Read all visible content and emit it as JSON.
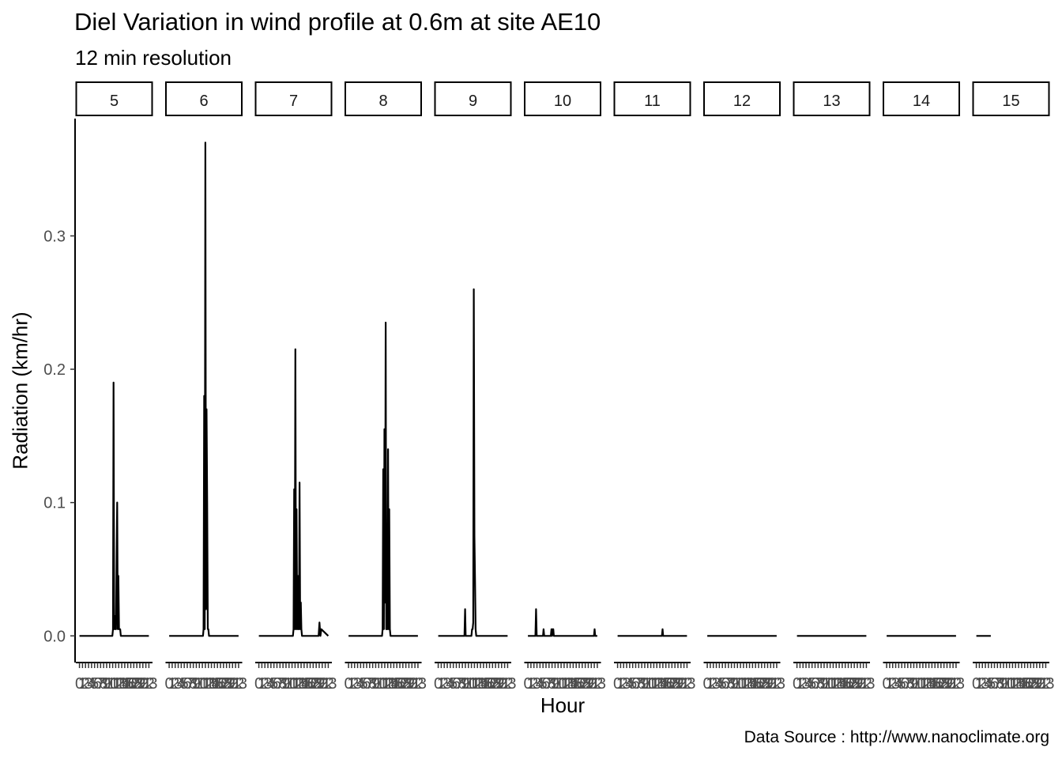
{
  "chart_data": {
    "type": "line",
    "title": "Diel Variation in wind profile at 0.6m at site AE10",
    "subtitle": "12 min resolution",
    "xlabel": "Hour",
    "ylabel": "Radiation (km/hr)",
    "caption": "Data Source : http://www.nanoclimate.org",
    "ylim": [
      -0.02,
      0.388
    ],
    "yticks": [
      0.0,
      0.1,
      0.2,
      0.3
    ],
    "ytick_labels": [
      "0.0",
      "0.1",
      "0.2",
      "0.3"
    ],
    "xlim": [
      -1.2,
      24.2
    ],
    "xtick_labels": [
      "0",
      "1",
      "2",
      "3",
      "4",
      "5",
      "6",
      "7",
      "8",
      "9",
      "10",
      "11",
      "12",
      "13",
      "14",
      "15",
      "16",
      "17",
      "18",
      "19",
      "20",
      "21",
      "22",
      "23"
    ],
    "grid": false,
    "legend": "none",
    "panels": [
      {
        "label": "5",
        "x": [
          0,
          10.9,
          11.1,
          11.3,
          11.5,
          11.7,
          11.9,
          12.1,
          12.3,
          12.5,
          12.7,
          12.9,
          13.1,
          13.3,
          13.5,
          13.7,
          13.9,
          14.1,
          23
        ],
        "values": [
          0,
          0,
          0.005,
          0.19,
          0.005,
          0.015,
          0.005,
          0.005,
          0.06,
          0.1,
          0.005,
          0.045,
          0.005,
          0.005,
          0.005,
          0,
          0,
          0,
          0
        ]
      },
      {
        "label": "6",
        "x": [
          0,
          11.2,
          11.4,
          11.6,
          11.8,
          12.0,
          12.2,
          12.4,
          12.6,
          12.8,
          13.0,
          13.2,
          13.4,
          23
        ],
        "values": [
          0,
          0,
          0.005,
          0.18,
          0.005,
          0.37,
          0.02,
          0.17,
          0.1,
          0.005,
          0.005,
          0,
          0,
          0
        ]
      },
      {
        "label": "7",
        "x": [
          0,
          11.3,
          11.5,
          11.7,
          11.9,
          12.1,
          12.3,
          12.5,
          12.7,
          12.9,
          13.1,
          13.3,
          13.5,
          13.7,
          13.9,
          14.1,
          14.3,
          19.8,
          20.1,
          20.4,
          20.7,
          23
        ],
        "values": [
          0,
          0,
          0.005,
          0.11,
          0.005,
          0.215,
          0.005,
          0.095,
          0.005,
          0.045,
          0.005,
          0.005,
          0.115,
          0.005,
          0.025,
          0.005,
          0,
          0,
          0.01,
          0,
          0.005,
          0
        ]
      },
      {
        "label": "8",
        "x": [
          0,
          11.1,
          11.3,
          11.5,
          11.7,
          11.9,
          12.1,
          12.3,
          12.5,
          12.7,
          12.9,
          13.1,
          13.3,
          13.5,
          13.7,
          13.9,
          14.1,
          14.3,
          23
        ],
        "values": [
          0,
          0,
          0.005,
          0.125,
          0.005,
          0.155,
          0.025,
          0.235,
          0.005,
          0.005,
          0.005,
          0.14,
          0.005,
          0.095,
          0.005,
          0,
          0,
          0,
          0
        ]
      },
      {
        "label": "9",
        "x": [
          0,
          8.7,
          8.9,
          9.1,
          11.0,
          11.2,
          11.4,
          11.6,
          11.8,
          12.0,
          12.2,
          12.4,
          12.6,
          23
        ],
        "values": [
          0,
          0,
          0.02,
          0,
          0,
          0.005,
          0.005,
          0.01,
          0.26,
          0.075,
          0.04,
          0.005,
          0,
          0
        ]
      },
      {
        "label": "10",
        "x": [
          0,
          2.5,
          2.7,
          2.9,
          5.0,
          5.2,
          5.4,
          7.6,
          7.8,
          8.0,
          8.2,
          8.4,
          8.6,
          21.9,
          22.1,
          22.3,
          23
        ],
        "values": [
          0,
          0,
          0.02,
          0,
          0,
          0.005,
          0,
          0,
          0.005,
          0,
          0.005,
          0.005,
          0,
          0,
          0.005,
          0,
          0
        ]
      },
      {
        "label": "11",
        "x": [
          0,
          14.7,
          14.9,
          15.1,
          23
        ],
        "values": [
          0,
          0,
          0.005,
          0,
          0
        ]
      },
      {
        "label": "12",
        "x": [
          0,
          23
        ],
        "values": [
          0,
          0
        ]
      },
      {
        "label": "13",
        "x": [
          0,
          23
        ],
        "values": [
          0,
          0
        ]
      },
      {
        "label": "14",
        "x": [
          0,
          23
        ],
        "values": [
          0,
          0
        ]
      },
      {
        "label": "15",
        "x": [
          0,
          4.8
        ],
        "values": [
          0,
          0
        ]
      }
    ]
  }
}
